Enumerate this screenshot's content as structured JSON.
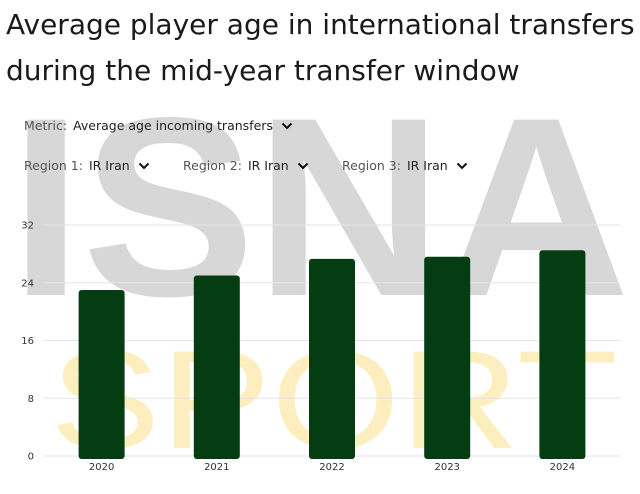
{
  "title": "Average player age in international transfers during the mid-year transfer window",
  "controls": {
    "metric": {
      "label": "Metric:",
      "value": "Average age incoming transfers"
    },
    "region1": {
      "label": "Region 1:",
      "value": "IR Iran"
    },
    "region2": {
      "label": "Region 2:",
      "value": "IR Iran"
    },
    "region3": {
      "label": "Region 3:",
      "value": "IR Iran"
    }
  },
  "icons": {
    "dropdown": "chevron-down-icon"
  },
  "watermark": {
    "line1": "ISNA",
    "line2": "SPORT"
  },
  "colors": {
    "bar": "#053d12",
    "grid": "#e6e6e6",
    "watermark_gray": "#d7d7d7",
    "watermark_gold": "#fdeec0"
  },
  "chart_data": {
    "type": "bar",
    "title": "Average player age in international transfers during the mid-year transfer window",
    "xlabel": "",
    "ylabel": "",
    "categories": [
      "2020",
      "2021",
      "2022",
      "2023",
      "2024"
    ],
    "values": [
      23,
      25,
      27.3,
      27.6,
      28.5
    ],
    "yticks": [
      0,
      8,
      16,
      24,
      32
    ],
    "ylim": [
      0,
      32
    ],
    "grid": true,
    "legend": "none"
  }
}
